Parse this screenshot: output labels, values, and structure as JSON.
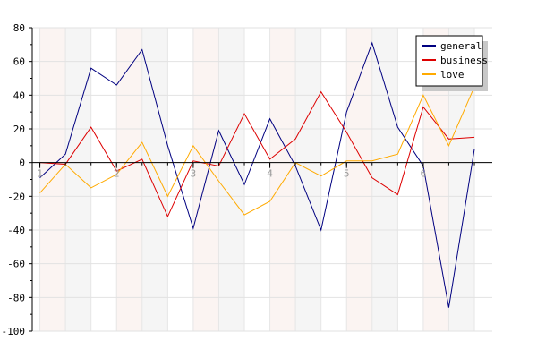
{
  "chart_data": {
    "type": "line",
    "title": "",
    "xlabel": "",
    "ylabel": "",
    "x": [
      1,
      1.333,
      1.667,
      2,
      2.333,
      2.667,
      3,
      3.333,
      3.667,
      4,
      4.333,
      4.667,
      5,
      5.333,
      5.667,
      6,
      6.333,
      6.667
    ],
    "xlim": [
      0.9,
      6.9
    ],
    "ylim": [
      -100,
      80
    ],
    "x_ticks": [
      "1",
      "2",
      "3",
      "4",
      "5",
      "6"
    ],
    "y_ticks": [
      "80",
      "60",
      "40",
      "20",
      "0",
      "-20",
      "-40",
      "-60",
      "-80",
      "-100"
    ],
    "grid": true,
    "legend_position": "top-right",
    "series": [
      {
        "name": "general",
        "color": "#000080",
        "values": [
          -9,
          5,
          56,
          46,
          67,
          10,
          -39,
          19,
          -13,
          26,
          -2,
          -40,
          30,
          71,
          21,
          -2,
          -86,
          8
        ]
      },
      {
        "name": "business",
        "color": "#dd0000",
        "values": [
          0,
          -1,
          21,
          -5,
          2,
          -32,
          1,
          -2,
          29,
          2,
          14,
          42,
          18,
          -9,
          -19,
          33,
          14,
          15
        ]
      },
      {
        "name": "love",
        "color": "#ffaa00",
        "values": [
          -18,
          -1,
          -15,
          -7,
          12,
          -20,
          10,
          -11,
          -31,
          -23,
          0,
          -8,
          1,
          1,
          5,
          40,
          10,
          45
        ]
      }
    ]
  }
}
